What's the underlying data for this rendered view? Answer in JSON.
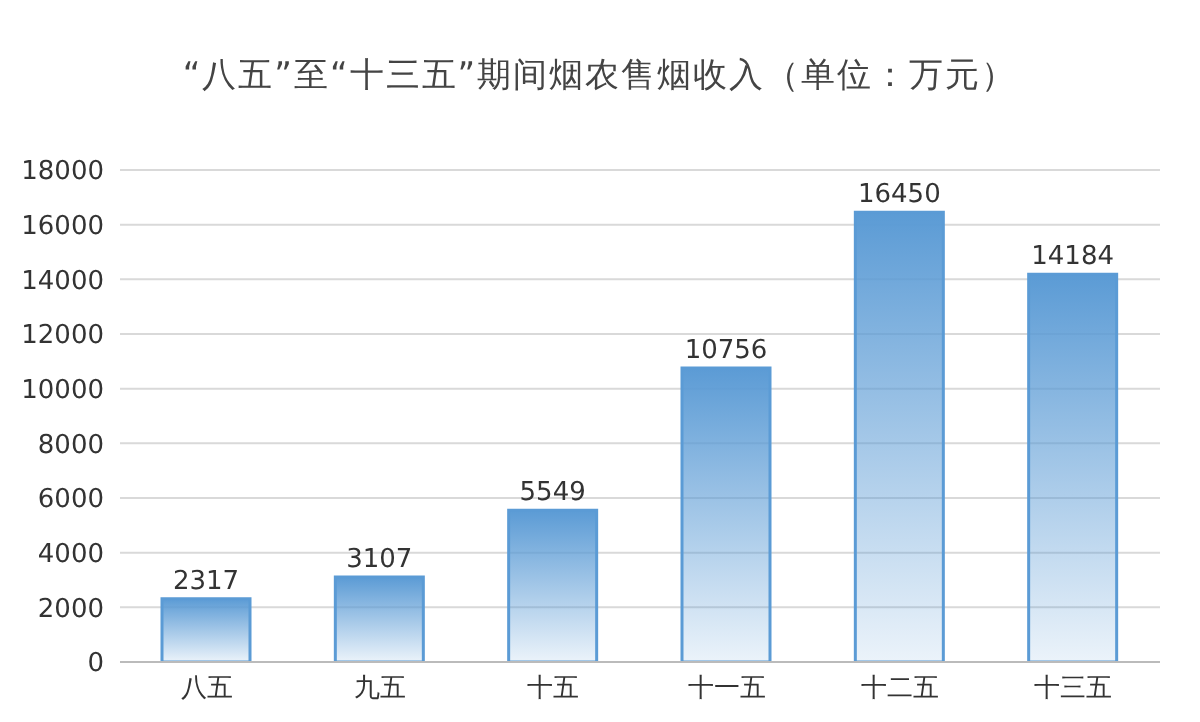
{
  "chart_data": {
    "type": "bar",
    "title": "“八五”至“十三五”期间烟农售烟收入（单位：万元）",
    "categories": [
      "八五",
      "九五",
      "十五",
      "十一五",
      "十二五",
      "十三五"
    ],
    "values": [
      2317,
      3107,
      5549,
      10756,
      16450,
      14184
    ],
    "color": "#5b9bd5",
    "ylim": [
      0,
      18000
    ],
    "yticks": [
      0,
      2000,
      4000,
      6000,
      8000,
      10000,
      12000,
      14000,
      16000,
      18000
    ],
    "grid": "y",
    "data_labels": true
  }
}
